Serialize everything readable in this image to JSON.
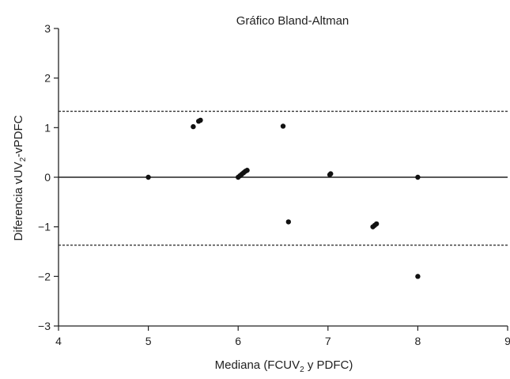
{
  "chart_data": {
    "type": "scatter",
    "title": "Gráfico Bland-Altman",
    "xlabel": {
      "text": "Mediana (FCUV",
      "sub": "2",
      "rest": " y PDFC)"
    },
    "ylabel": {
      "text": "Diferencia vUV",
      "sub": "2",
      "rest": "-vPDFC"
    },
    "xlim": [
      4,
      9
    ],
    "ylim": [
      -3,
      3
    ],
    "x_ticks": [
      4,
      5,
      6,
      7,
      8,
      9
    ],
    "y_ticks": [
      {
        "value": -3,
        "label": "−3"
      },
      {
        "value": -2,
        "label": "−2"
      },
      {
        "value": -1,
        "label": "−1"
      },
      {
        "value": 0,
        "label": "0"
      },
      {
        "value": 1,
        "label": "1"
      },
      {
        "value": 2,
        "label": "2"
      },
      {
        "value": 3,
        "label": "3"
      }
    ],
    "mean_line": 0,
    "limits_of_agreement": [
      1.33,
      -1.37
    ],
    "grid": false,
    "points": [
      {
        "x": 5.0,
        "y": 0.0
      },
      {
        "x": 5.5,
        "y": 1.02
      },
      {
        "x": 5.56,
        "y": 1.13
      },
      {
        "x": 5.58,
        "y": 1.15
      },
      {
        "x": 6.0,
        "y": 0.0
      },
      {
        "x": 6.02,
        "y": 0.03
      },
      {
        "x": 6.04,
        "y": 0.06
      },
      {
        "x": 6.06,
        "y": 0.09
      },
      {
        "x": 6.08,
        "y": 0.12
      },
      {
        "x": 6.1,
        "y": 0.14
      },
      {
        "x": 6.5,
        "y": 1.03
      },
      {
        "x": 6.56,
        "y": -0.9
      },
      {
        "x": 7.02,
        "y": 0.05
      },
      {
        "x": 7.03,
        "y": 0.07
      },
      {
        "x": 7.5,
        "y": -1.0
      },
      {
        "x": 7.52,
        "y": -0.97
      },
      {
        "x": 7.54,
        "y": -0.94
      },
      {
        "x": 8.0,
        "y": 0.0
      },
      {
        "x": 8.0,
        "y": -2.0
      }
    ],
    "colors": {
      "points": "#111111",
      "axes": "#222222",
      "lines": "#222222"
    }
  }
}
